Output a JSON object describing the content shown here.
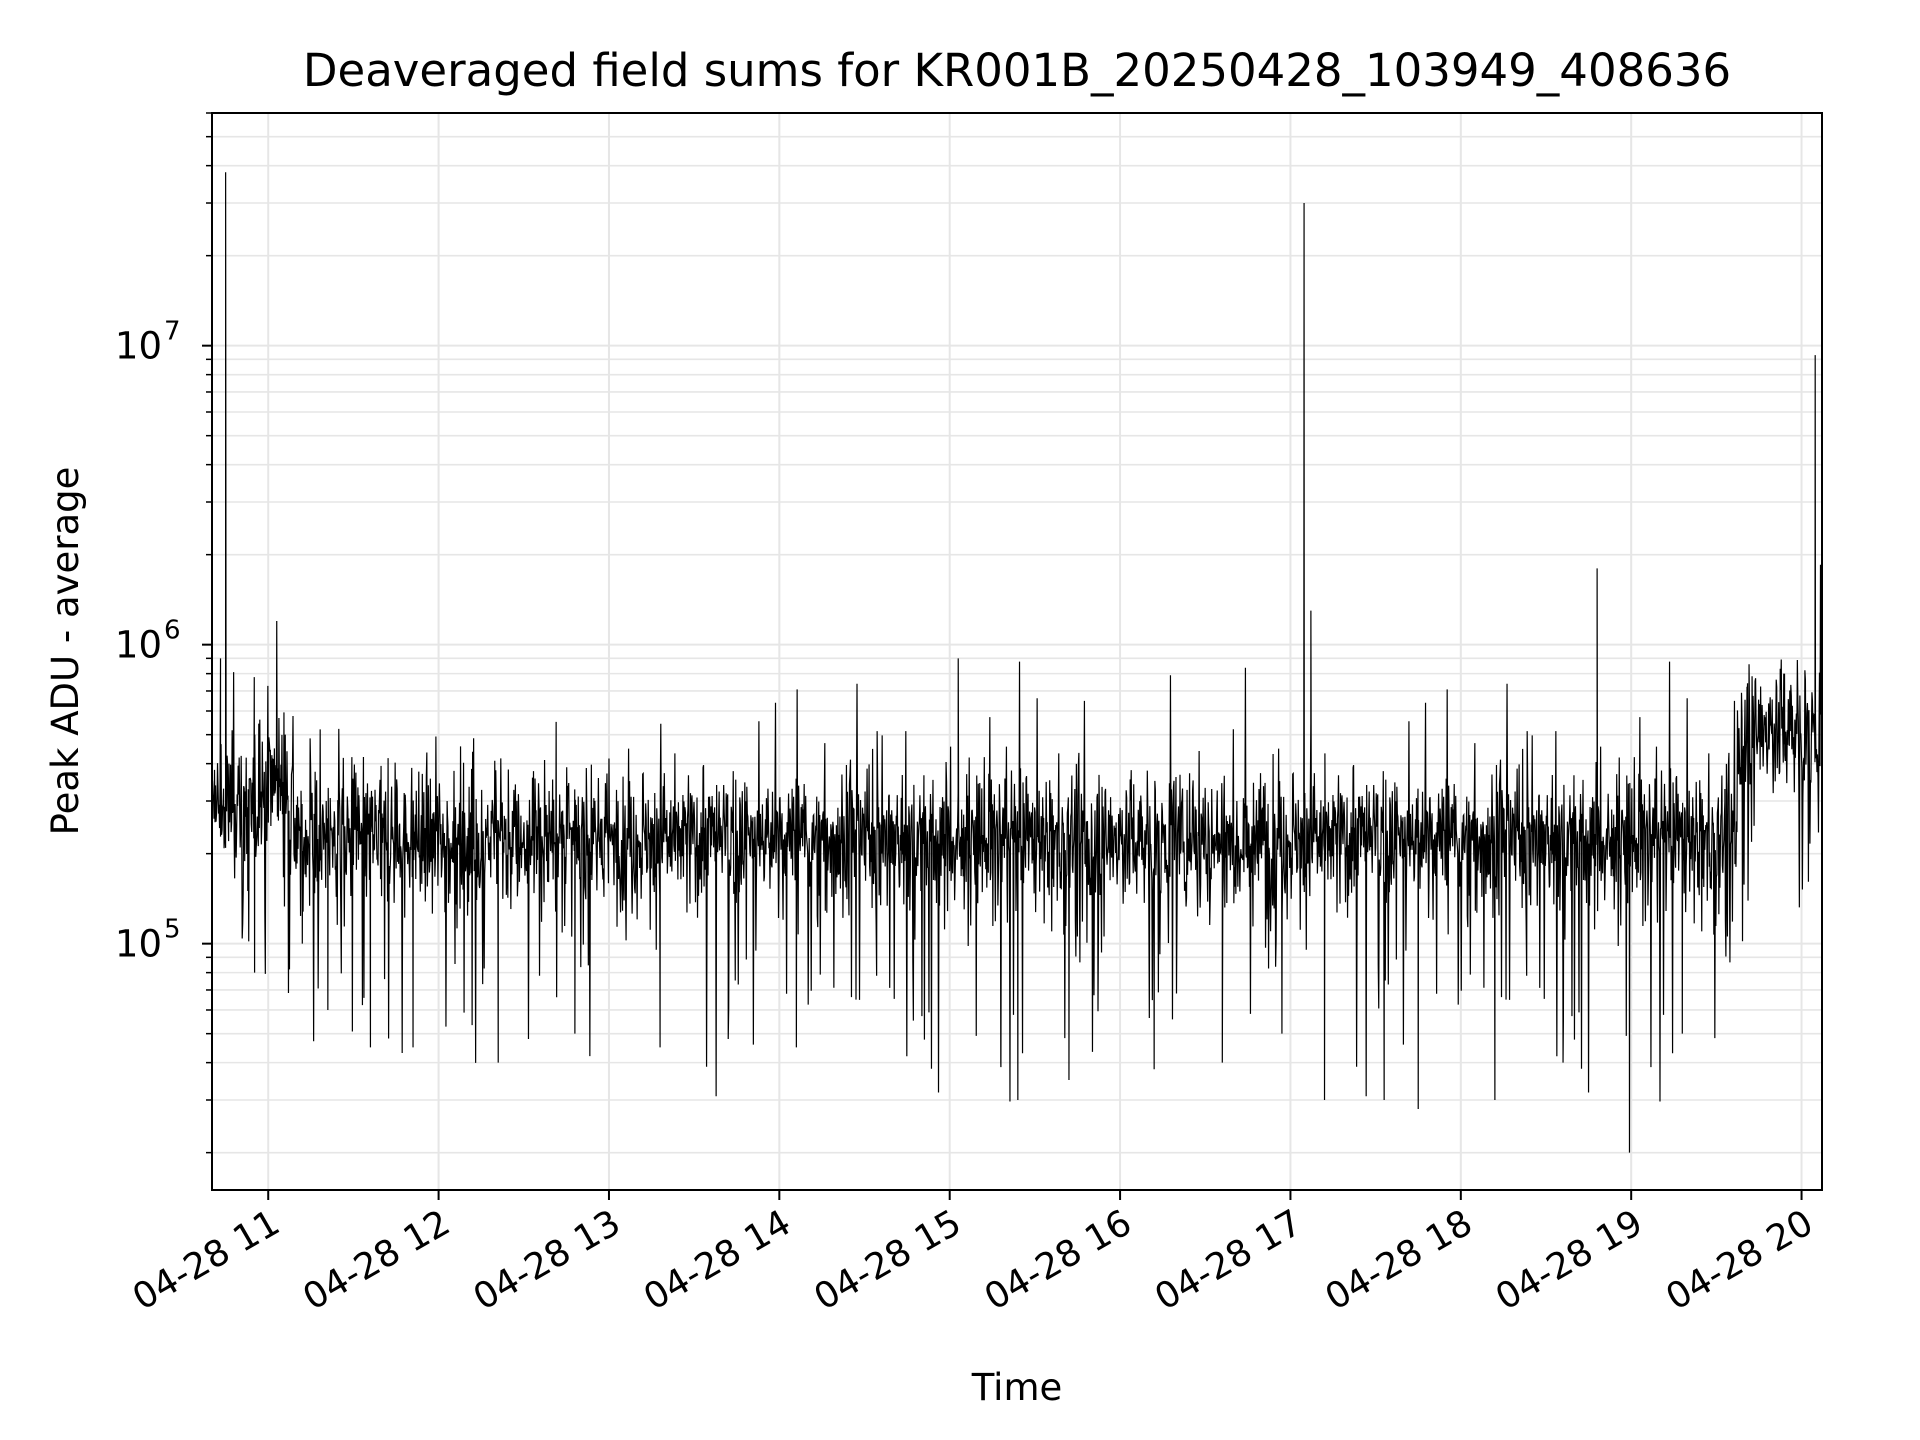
{
  "chart_data": {
    "type": "line",
    "title": "Deaveraged field sums for KR001B_20250428_103949_408636",
    "xlabel": "Time",
    "ylabel": "Peak ADU - average",
    "x_ticks": [
      "04-28 11",
      "04-28 12",
      "04-28 13",
      "04-28 14",
      "04-28 15",
      "04-28 16",
      "04-28 17",
      "04-28 18",
      "04-28 19",
      "04-28 20"
    ],
    "x_tick_hours": [
      11,
      12,
      13,
      14,
      15,
      16,
      17,
      18,
      19,
      20
    ],
    "xlim_hours": [
      10.67,
      20.12
    ],
    "y_ticks": [
      {
        "base": "10",
        "exp": "5",
        "value": 100000
      },
      {
        "base": "10",
        "exp": "6",
        "value": 1000000
      },
      {
        "base": "10",
        "exp": "7",
        "value": 10000000
      }
    ],
    "yscale": "log",
    "ylim": [
      15000,
      60000000
    ],
    "grid": true,
    "line_color": "#000000",
    "grid_color": "#e6e6e6",
    "series": [
      {
        "values": [
          [
            10.67,
            300000
          ],
          [
            10.72,
            900000
          ],
          [
            10.75,
            38000000
          ],
          [
            10.77,
            400000
          ],
          [
            10.88,
            150000
          ],
          [
            10.92,
            80000
          ],
          [
            11.05,
            1200000
          ],
          [
            11.1,
            500000
          ],
          [
            11.2,
            100000
          ],
          [
            11.35,
            60000
          ],
          [
            11.6,
            45000
          ],
          [
            11.85,
            45000
          ],
          [
            12.05,
            300000
          ],
          [
            12.35,
            40000
          ],
          [
            12.8,
            50000
          ],
          [
            13.3,
            45000
          ],
          [
            13.7,
            48000
          ],
          [
            14.1,
            45000
          ],
          [
            14.6,
            200000
          ],
          [
            15.05,
            900000
          ],
          [
            15.3,
            40000
          ],
          [
            15.4,
            30000
          ],
          [
            15.7,
            35000
          ],
          [
            16.2,
            38000
          ],
          [
            16.6,
            40000
          ],
          [
            16.95,
            50000
          ],
          [
            17.08,
            30000000
          ],
          [
            17.12,
            1300000
          ],
          [
            17.2,
            30000
          ],
          [
            17.55,
            30000
          ],
          [
            17.75,
            28000
          ],
          [
            18.2,
            30000
          ],
          [
            18.6,
            40000
          ],
          [
            18.8,
            1800000
          ],
          [
            18.99,
            20000
          ],
          [
            19.3,
            50000
          ],
          [
            19.55,
            300000
          ],
          [
            19.68,
            600000
          ],
          [
            19.9,
            800000
          ],
          [
            20.08,
            9300000
          ],
          [
            20.12,
            600000
          ]
        ]
      }
    ]
  }
}
